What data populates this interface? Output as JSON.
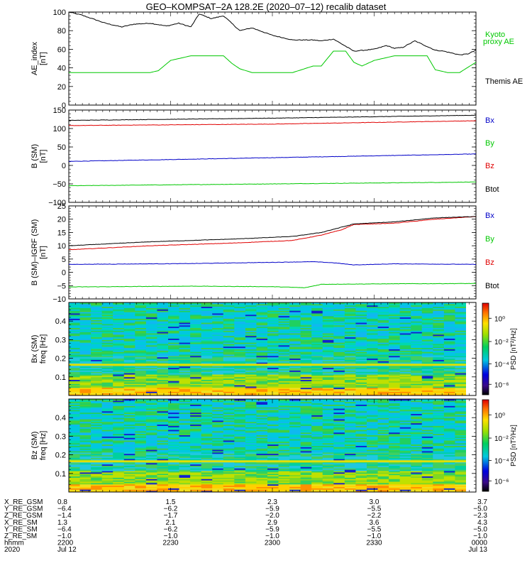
{
  "title": "GEO–KOMPSAT–2A 128.2E (2020–07–12) recalib dataset",
  "colors": {
    "black": "#000000",
    "red": "#e00000",
    "blue": "#0000c8",
    "green": "#00c800"
  },
  "chart_data": [
    {
      "type": "line",
      "ylabel_lines": [
        "AE_index",
        "[nT]"
      ],
      "ylim": [
        0,
        100
      ],
      "yticks": [
        0,
        20,
        40,
        60,
        80,
        100
      ],
      "series": [
        {
          "name": "Themis AE",
          "color": "#000000",
          "x": [
            0,
            0.03,
            0.05,
            0.09,
            0.13,
            0.16,
            0.2,
            0.24,
            0.27,
            0.3,
            0.32,
            0.35,
            0.38,
            0.4,
            0.42,
            0.45,
            0.5,
            0.55,
            0.6,
            0.62,
            0.65,
            0.7,
            0.75,
            0.78,
            0.8,
            0.82,
            0.85,
            0.88,
            0.9,
            0.92,
            0.94,
            0.96,
            0.98,
            1
          ],
          "y": [
            100,
            97,
            94,
            88,
            84,
            87,
            88,
            85,
            88,
            84,
            98,
            93,
            96,
            88,
            80,
            83,
            75,
            70,
            70,
            69,
            71,
            58,
            60,
            64,
            61,
            62,
            69,
            63,
            59,
            58,
            56,
            54,
            55,
            59
          ]
        },
        {
          "name": "Kyoto proxy AE",
          "color": "#00c800",
          "x": [
            0,
            0.2,
            0.22,
            0.25,
            0.3,
            0.36,
            0.38,
            0.4,
            0.42,
            0.45,
            0.5,
            0.55,
            0.6,
            0.62,
            0.65,
            0.68,
            0.7,
            0.72,
            0.75,
            0.8,
            0.85,
            0.88,
            0.9,
            0.93,
            0.96,
            1
          ],
          "y": [
            35,
            35,
            37,
            48,
            53,
            53,
            53,
            45,
            39,
            35,
            35,
            35,
            42,
            42,
            58,
            58,
            46,
            42,
            48,
            53,
            53,
            53,
            38,
            35,
            35,
            46
          ]
        }
      ]
    },
    {
      "type": "line",
      "ylabel_lines": [
        "B (SM)",
        "[nT]"
      ],
      "ylim": [
        -100,
        150
      ],
      "yticks": [
        -100,
        -50,
        0,
        50,
        100,
        150
      ],
      "series": [
        {
          "name": "Bx",
          "color": "#0000c8",
          "x": [
            0,
            0.5,
            1
          ],
          "y": [
            11,
            21,
            31
          ]
        },
        {
          "name": "By",
          "color": "#00c800",
          "x": [
            0,
            0.5,
            1
          ],
          "y": [
            -55,
            -50,
            -45
          ]
        },
        {
          "name": "Bz",
          "color": "#e00000",
          "x": [
            0,
            0.5,
            1
          ],
          "y": [
            108,
            112,
            121
          ]
        },
        {
          "name": "Btot",
          "color": "#000000",
          "x": [
            0,
            0.5,
            1
          ],
          "y": [
            122,
            128,
            136
          ]
        }
      ]
    },
    {
      "type": "line",
      "ylabel_lines": [
        "B (SM)–IGRF (SM)",
        "[nT]"
      ],
      "ylim": [
        -10,
        25
      ],
      "yticks": [
        -10,
        -5,
        0,
        5,
        10,
        15,
        20,
        25
      ],
      "series": [
        {
          "name": "Bx",
          "color": "#0000c8",
          "x": [
            0,
            0.3,
            0.6,
            0.65,
            0.7,
            0.8,
            1
          ],
          "y": [
            3,
            3.3,
            4,
            3.6,
            2.8,
            3.2,
            3
          ]
        },
        {
          "name": "By",
          "color": "#00c800",
          "x": [
            0,
            0.3,
            0.5,
            0.58,
            0.62,
            0.8,
            1
          ],
          "y": [
            -5.5,
            -5.2,
            -5.4,
            -5.8,
            -4.5,
            -4.3,
            -4.2
          ]
        },
        {
          "name": "Bz",
          "color": "#e00000",
          "x": [
            0,
            0.2,
            0.4,
            0.55,
            0.62,
            0.67,
            0.7,
            0.8,
            0.9,
            1
          ],
          "y": [
            8.5,
            10,
            11,
            12,
            14,
            16,
            18,
            18.5,
            20,
            21
          ]
        },
        {
          "name": "Btot",
          "color": "#000000",
          "x": [
            0,
            0.2,
            0.4,
            0.55,
            0.62,
            0.67,
            0.7,
            0.8,
            0.9,
            1
          ],
          "y": [
            10,
            11.5,
            12.5,
            13.5,
            15,
            17,
            18.2,
            19,
            20.5,
            21
          ]
        }
      ]
    },
    {
      "type": "heatmap",
      "ylabel_lines": [
        "Bx (SM)",
        "freq [Hz]"
      ],
      "ylim": [
        0,
        0.5
      ],
      "yticks": [
        0.1,
        0.2,
        0.3,
        0.4
      ],
      "colorbar": {
        "label": "PSD [nT²/Hz]",
        "ticks": [
          "10⁰",
          "10⁻²",
          "10⁻⁴",
          "10⁻⁶"
        ]
      }
    },
    {
      "type": "heatmap",
      "ylabel_lines": [
        "Bz (SM)",
        "freq [Hz]"
      ],
      "ylim": [
        0,
        0.5
      ],
      "yticks": [
        0.1,
        0.2,
        0.3,
        0.4
      ],
      "colorbar": {
        "label": "PSD [nT²/Hz]",
        "ticks": [
          "10⁰",
          "10⁻²",
          "10⁻⁴",
          "10⁻⁶"
        ]
      }
    }
  ],
  "legends": [
    [
      {
        "text": "Kyoto",
        "color": "#00c800"
      },
      {
        "text": "proxy AE",
        "color": "#00c800"
      },
      {
        "text": "Themis AE",
        "color": "#000000"
      }
    ],
    [
      {
        "text": "Bx",
        "color": "#0000c8"
      },
      {
        "text": "By",
        "color": "#00c800"
      },
      {
        "text": "Bz",
        "color": "#e00000"
      },
      {
        "text": "Btot",
        "color": "#000000"
      }
    ],
    [
      {
        "text": "Bx",
        "color": "#0000c8"
      },
      {
        "text": "By",
        "color": "#00c800"
      },
      {
        "text": "Bz",
        "color": "#e00000"
      },
      {
        "text": "Btot",
        "color": "#000000"
      }
    ]
  ],
  "xaxis": {
    "row_labels": [
      "X_RE_GSM",
      "Y_RE_GSM",
      "Z_RE_GSM",
      "X_RE_SM",
      "Y_RE_SM",
      "Z_RE_SM",
      "hhmm",
      "2020"
    ],
    "ticks": [
      {
        "x": 0,
        "values": [
          "0.8",
          "−6.4",
          "−1.4",
          "1.3",
          "−6.4",
          "−1.0",
          "2200",
          "Jul 12"
        ]
      },
      {
        "x": 0.25,
        "values": [
          "1.5",
          "−6.2",
          "−1.7",
          "2.1",
          "−6.2",
          "−1.0",
          "2230",
          ""
        ]
      },
      {
        "x": 0.5,
        "values": [
          "2.3",
          "−5.9",
          "−2.0",
          "2.9",
          "−5.9",
          "−1.0",
          "2300",
          ""
        ]
      },
      {
        "x": 0.75,
        "values": [
          "3.0",
          "−5.5",
          "−2.2",
          "3.6",
          "−5.5",
          "−1.0",
          "2330",
          ""
        ]
      },
      {
        "x": 1,
        "values": [
          "3.7",
          "−5.0",
          "−2.3",
          "4.3",
          "−5.0",
          "−1.0",
          "0000",
          "Jul 13"
        ]
      }
    ]
  }
}
